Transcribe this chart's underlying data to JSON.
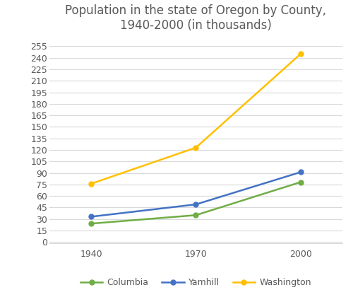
{
  "title": "Population in the state of Oregon by County,\n1940-2000 (in thousands)",
  "x_values": [
    1940,
    1970,
    2000
  ],
  "series": [
    {
      "label": "Columbia",
      "color": "#70ad47",
      "values": [
        24,
        35,
        78
      ],
      "marker": "o"
    },
    {
      "label": "Yamhill",
      "color": "#4472c4",
      "values": [
        33,
        49,
        91
      ],
      "marker": "o"
    },
    {
      "label": "Washington",
      "color": "#ffc000",
      "values": [
        76,
        123,
        245
      ],
      "marker": "o"
    }
  ],
  "yticks": [
    0,
    15,
    30,
    45,
    60,
    75,
    90,
    105,
    120,
    135,
    150,
    165,
    180,
    195,
    210,
    225,
    240,
    255
  ],
  "ylim": [
    -2,
    265
  ],
  "xlim": [
    1928,
    2012
  ],
  "xticks": [
    1940,
    1970,
    2000
  ],
  "grid_color": "#d9d9d9",
  "bg_color": "#ffffff",
  "title_color": "#595959",
  "title_fontsize": 12,
  "legend_fontsize": 9,
  "tick_fontsize": 9,
  "linewidth": 1.8,
  "markersize": 5
}
